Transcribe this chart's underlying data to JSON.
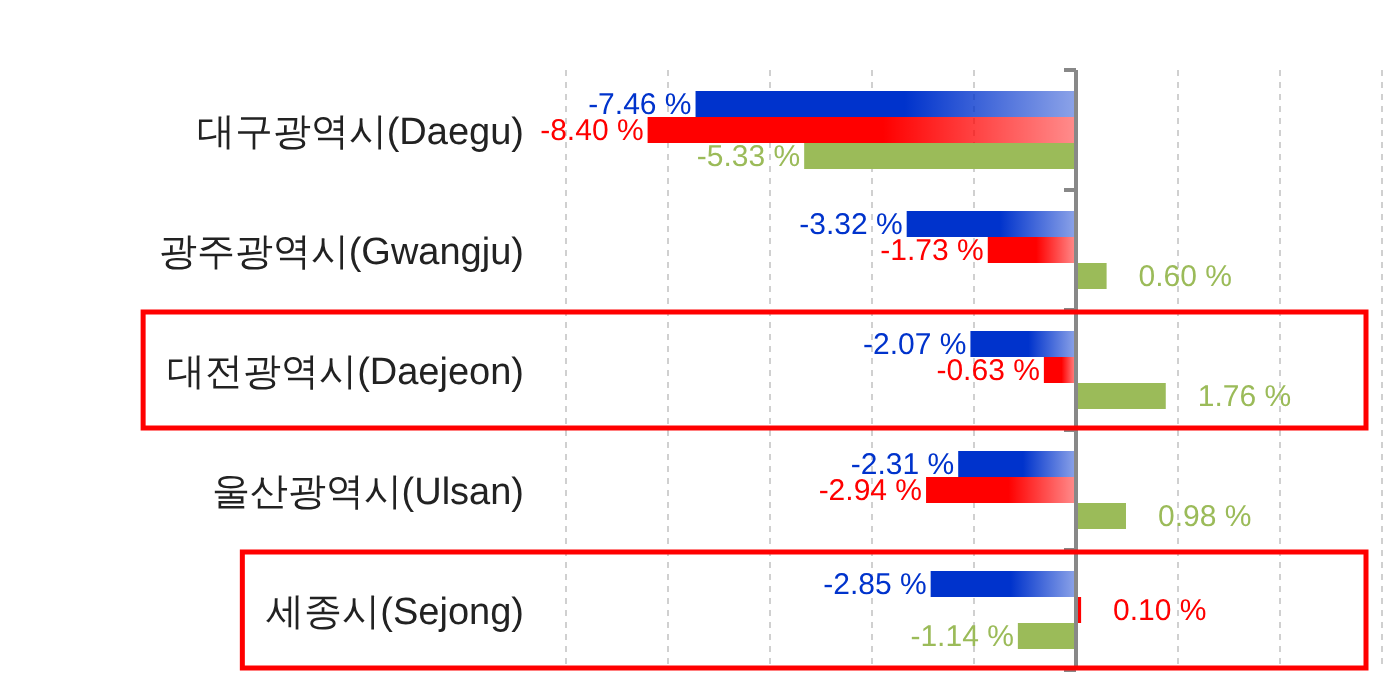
{
  "chart_data": {
    "type": "bar",
    "orientation": "horizontal",
    "categories": [
      "대구광역시(Daegu)",
      "광주광역시(Gwangju)",
      "대전광역시(Daejeon)",
      "울산광역시(Ulsan)",
      "세종시(Sejong)"
    ],
    "series": [
      {
        "color": "#0033cc",
        "values": [
          -7.46,
          -3.32,
          -2.07,
          -2.31,
          -2.85
        ],
        "value_labels": [
          "-7.46 %",
          "-3.32 %",
          "-2.07 %",
          "-2.31 %",
          "-2.85 %"
        ]
      },
      {
        "color": "#ff0000",
        "values": [
          -8.4,
          -1.73,
          -0.63,
          -2.94,
          0.1
        ],
        "value_labels": [
          "-8.40 %",
          "-1.73 %",
          "-0.63 %",
          "-2.94 %",
          "0.10 %"
        ]
      },
      {
        "color": "#9bbb59",
        "values": [
          -5.33,
          0.6,
          1.76,
          0.98,
          -1.14
        ],
        "value_labels": [
          "-5.33 %",
          "0.60 %",
          "1.76 %",
          "0.98 %",
          "-1.14 %"
        ]
      }
    ],
    "xlim": [
      -10,
      6
    ],
    "xticks": [
      {
        "value": -10,
        "label": null
      },
      {
        "value": -8,
        "label": null
      },
      {
        "value": -6,
        "label": null
      },
      {
        "value": -4,
        "label": null
      },
      {
        "value": -2,
        "label": null
      },
      {
        "value": 0,
        "label": null
      },
      {
        "value": 2,
        "label": null
      },
      {
        "value": 4,
        "label": null
      },
      {
        "value": 6,
        "label": null
      }
    ],
    "grid": "x",
    "tick_labels": "y"
  }
}
